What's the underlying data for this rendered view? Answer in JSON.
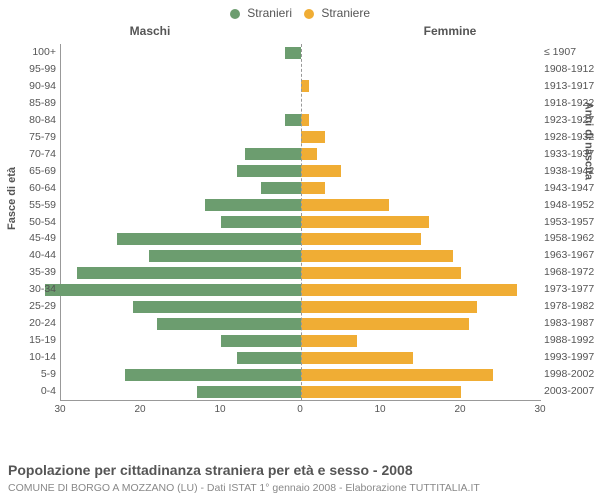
{
  "legend": {
    "male": "Stranieri",
    "female": "Straniere"
  },
  "colors": {
    "male": "#6c9d6f",
    "female": "#f0ad34",
    "grid": "#dddddd",
    "axis": "#999999",
    "text": "#555555",
    "subtext": "#888888",
    "background": "#ffffff"
  },
  "headers": {
    "male": "Maschi",
    "female": "Femmine"
  },
  "axis_titles": {
    "left": "Fasce di età",
    "right": "Anni di nascita"
  },
  "chart": {
    "type": "population-pyramid",
    "xmax": 30,
    "xtick_step": 10,
    "xticks_left": [
      "30",
      "20",
      "10",
      "0"
    ],
    "xticks_right": [
      "0",
      "10",
      "20",
      "30"
    ],
    "bar_width_ratio": 0.7,
    "rows": [
      {
        "age": "100+",
        "birth": "≤ 1907",
        "m": 2,
        "f": 0
      },
      {
        "age": "95-99",
        "birth": "1908-1912",
        "m": 0,
        "f": 0
      },
      {
        "age": "90-94",
        "birth": "1913-1917",
        "m": 0,
        "f": 1
      },
      {
        "age": "85-89",
        "birth": "1918-1922",
        "m": 0,
        "f": 0
      },
      {
        "age": "80-84",
        "birth": "1923-1927",
        "m": 2,
        "f": 1
      },
      {
        "age": "75-79",
        "birth": "1928-1932",
        "m": 0,
        "f": 3
      },
      {
        "age": "70-74",
        "birth": "1933-1937",
        "m": 7,
        "f": 2
      },
      {
        "age": "65-69",
        "birth": "1938-1942",
        "m": 8,
        "f": 5
      },
      {
        "age": "60-64",
        "birth": "1943-1947",
        "m": 5,
        "f": 3
      },
      {
        "age": "55-59",
        "birth": "1948-1952",
        "m": 12,
        "f": 11
      },
      {
        "age": "50-54",
        "birth": "1953-1957",
        "m": 10,
        "f": 16
      },
      {
        "age": "45-49",
        "birth": "1958-1962",
        "m": 23,
        "f": 15
      },
      {
        "age": "40-44",
        "birth": "1963-1967",
        "m": 19,
        "f": 19
      },
      {
        "age": "35-39",
        "birth": "1968-1972",
        "m": 28,
        "f": 20
      },
      {
        "age": "30-34",
        "birth": "1973-1977",
        "m": 32,
        "f": 27
      },
      {
        "age": "25-29",
        "birth": "1978-1982",
        "m": 21,
        "f": 22
      },
      {
        "age": "20-24",
        "birth": "1983-1987",
        "m": 18,
        "f": 21
      },
      {
        "age": "15-19",
        "birth": "1988-1992",
        "m": 10,
        "f": 7
      },
      {
        "age": "10-14",
        "birth": "1993-1997",
        "m": 8,
        "f": 14
      },
      {
        "age": "5-9",
        "birth": "1998-2002",
        "m": 22,
        "f": 24
      },
      {
        "age": "0-4",
        "birth": "2003-2007",
        "m": 13,
        "f": 20
      }
    ]
  },
  "caption": "Popolazione per cittadinanza straniera per età e sesso - 2008",
  "subcaption": "COMUNE DI BORGO A MOZZANO (LU) - Dati ISTAT 1° gennaio 2008 - Elaborazione TUTTITALIA.IT"
}
